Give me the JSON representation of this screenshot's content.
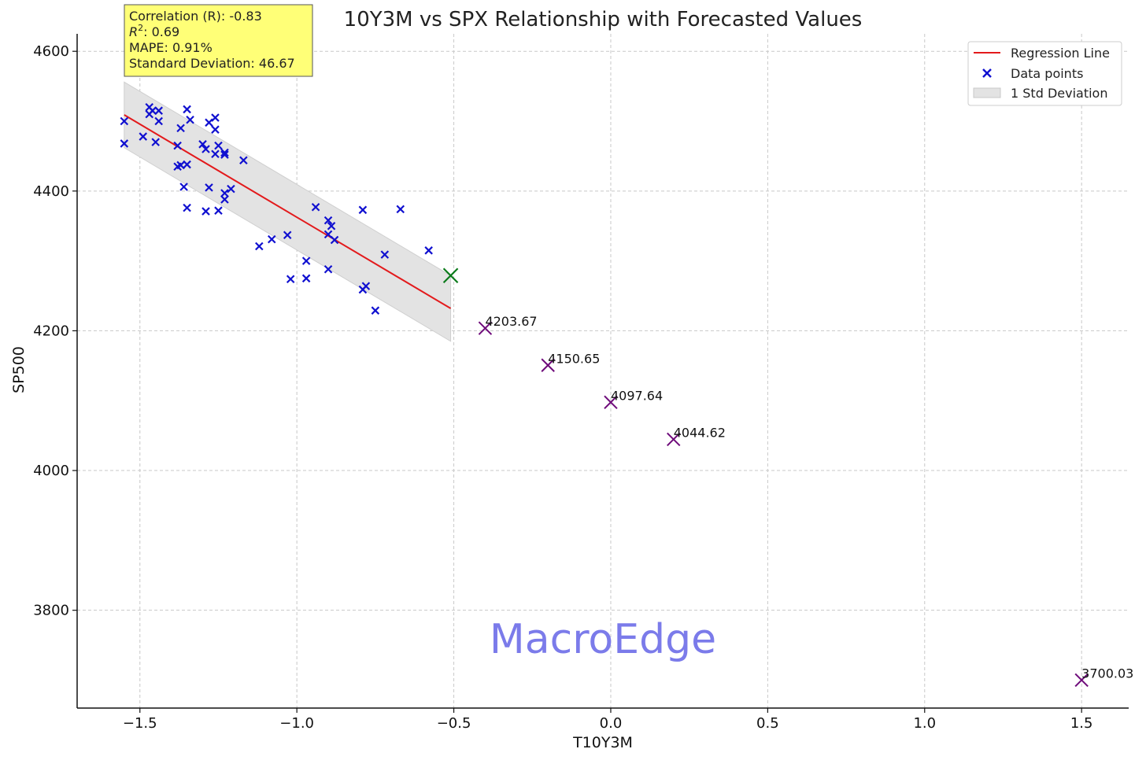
{
  "chart_data": {
    "type": "scatter",
    "title": "10Y3M vs SPX Relationship with Forecasted Values",
    "xlabel": "T10Y3M",
    "ylabel": "SP500",
    "xlim": [
      -1.7,
      1.65
    ],
    "ylim": [
      3660,
      4625
    ],
    "x_ticks": [
      -1.5,
      -1.0,
      -0.5,
      0.0,
      0.5,
      1.0,
      1.5
    ],
    "x_tick_labels": [
      "−1.5",
      "−1.0",
      "−0.5",
      "0.0",
      "0.5",
      "1.0",
      "1.5"
    ],
    "y_ticks": [
      3800,
      4000,
      4200,
      4400,
      4600
    ],
    "y_tick_labels": [
      "3800",
      "4000",
      "4200",
      "4400",
      "4600"
    ],
    "grid": true,
    "legend_position": "top-right",
    "legend": {
      "regression": "Regression Line",
      "points": "Data points",
      "band": "1 Std Deviation"
    },
    "colors": {
      "regression": "#e31a1c",
      "points": "#1010d0",
      "band": "#e3e3e3",
      "current": "#0a7a1a",
      "forecast": "#6e0a7a",
      "stats_box": "#ffff77",
      "watermark": "#7b7bea"
    },
    "stats": {
      "correlation": "Correlation (R): -0.83",
      "r2_label": "R",
      "r2_value": ": 0.69",
      "mape": "MAPE: 0.91%",
      "std_dev": "Standard Deviation: 46.67"
    },
    "watermark": "MacroEdge",
    "regression": {
      "x": [
        -1.55,
        -0.51
      ],
      "y": [
        4509,
        4232
      ]
    },
    "std_band": {
      "x": [
        -1.55,
        -0.51
      ],
      "upper": [
        4556,
        4279
      ],
      "lower": [
        4462,
        4185
      ]
    },
    "data_points": [
      [
        -1.55,
        4500
      ],
      [
        -1.55,
        4468
      ],
      [
        -1.49,
        4478
      ],
      [
        -1.47,
        4520
      ],
      [
        -1.47,
        4510
      ],
      [
        -1.46,
        4515
      ],
      [
        -1.45,
        4470
      ],
      [
        -1.44,
        4515
      ],
      [
        -1.44,
        4500
      ],
      [
        -1.38,
        4465
      ],
      [
        -1.37,
        4490
      ],
      [
        -1.38,
        4435
      ],
      [
        -1.37,
        4437
      ],
      [
        -1.36,
        4406
      ],
      [
        -1.35,
        4517
      ],
      [
        -1.34,
        4502
      ],
      [
        -1.35,
        4438
      ],
      [
        -1.35,
        4376
      ],
      [
        -1.3,
        4467
      ],
      [
        -1.29,
        4460
      ],
      [
        -1.29,
        4371
      ],
      [
        -1.28,
        4498
      ],
      [
        -1.28,
        4405
      ],
      [
        -1.26,
        4505
      ],
      [
        -1.26,
        4488
      ],
      [
        -1.26,
        4453
      ],
      [
        -1.25,
        4465
      ],
      [
        -1.25,
        4372
      ],
      [
        -1.23,
        4455
      ],
      [
        -1.23,
        4452
      ],
      [
        -1.23,
        4397
      ],
      [
        -1.23,
        4388
      ],
      [
        -1.21,
        4403
      ],
      [
        -1.17,
        4444
      ],
      [
        -1.12,
        4321
      ],
      [
        -1.08,
        4331
      ],
      [
        -1.03,
        4337
      ],
      [
        -1.02,
        4274
      ],
      [
        -0.97,
        4300
      ],
      [
        -0.97,
        4275
      ],
      [
        -0.94,
        4377
      ],
      [
        -0.9,
        4358
      ],
      [
        -0.89,
        4350
      ],
      [
        -0.9,
        4338
      ],
      [
        -0.88,
        4330
      ],
      [
        -0.9,
        4288
      ],
      [
        -0.79,
        4373
      ],
      [
        -0.78,
        4264
      ],
      [
        -0.79,
        4259
      ],
      [
        -0.75,
        4229
      ],
      [
        -0.72,
        4309
      ],
      [
        -0.67,
        4374
      ],
      [
        -0.58,
        4315
      ]
    ],
    "current_point": [
      -0.51,
      4279
    ],
    "forecasts": [
      {
        "x": -0.4,
        "y": 4203.67,
        "label": "4203.67"
      },
      {
        "x": -0.2,
        "y": 4150.65,
        "label": "4150.65"
      },
      {
        "x": 0.0,
        "y": 4097.64,
        "label": "4097.64"
      },
      {
        "x": 0.2,
        "y": 4044.62,
        "label": "4044.62"
      },
      {
        "x": 1.5,
        "y": 3700.03,
        "label": "3700.03"
      }
    ]
  }
}
